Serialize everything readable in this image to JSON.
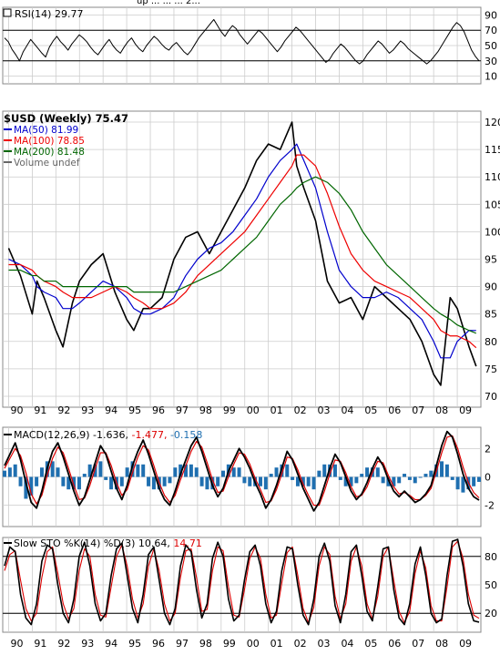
{
  "header": {
    "title_fragment": "up ...  ...  ... 2..."
  },
  "colors": {
    "price": "#000000",
    "price_down": "#cc0000",
    "ma50": "#0000cc",
    "ma100": "#ee0000",
    "ma200": "#006600",
    "macd": "#000000",
    "signal": "#dd0000",
    "histogram": "#1f6fb0",
    "slow_d": "#dd0000",
    "grid": "#cccccc",
    "reference_line": "#000000"
  },
  "years": [
    "90",
    "91",
    "92",
    "93",
    "94",
    "95",
    "96",
    "97",
    "98",
    "99",
    "00",
    "01",
    "02",
    "03",
    "04",
    "05",
    "06",
    "07",
    "08",
    "09"
  ],
  "chart_data": [
    {
      "type": "line",
      "panel": "rsi",
      "legend_label": "RSI(14)",
      "legend_value": "29.77",
      "yticks": [
        10,
        30,
        50,
        70,
        90
      ],
      "ylim": [
        0,
        100
      ],
      "reference_lines": [
        30,
        70
      ],
      "series": [
        {
          "name": "RSI(14)",
          "values": [
            60,
            55,
            45,
            38,
            30,
            42,
            50,
            58,
            52,
            46,
            40,
            35,
            48,
            56,
            62,
            55,
            50,
            44,
            52,
            58,
            64,
            60,
            55,
            48,
            42,
            38,
            45,
            52,
            58,
            50,
            44,
            40,
            48,
            55,
            60,
            52,
            46,
            42,
            50,
            56,
            62,
            58,
            52,
            47,
            44,
            50,
            54,
            48,
            42,
            38,
            44,
            52,
            60,
            66,
            72,
            78,
            84,
            76,
            68,
            62,
            70,
            76,
            72,
            64,
            58,
            52,
            58,
            64,
            70,
            66,
            60,
            54,
            48,
            42,
            48,
            56,
            62,
            68,
            74,
            70,
            64,
            58,
            52,
            46,
            40,
            34,
            28,
            32,
            40,
            46,
            52,
            48,
            42,
            36,
            30,
            26,
            30,
            38,
            44,
            50,
            56,
            52,
            46,
            40,
            44,
            50,
            56,
            52,
            46,
            42,
            38,
            34,
            30,
            26,
            30,
            36,
            42,
            50,
            58,
            66,
            74,
            80,
            76,
            68,
            56,
            44,
            36,
            30
          ]
        }
      ]
    },
    {
      "type": "line",
      "panel": "price",
      "title": "$USD (Weekly)",
      "title_value": "75.47",
      "legend": [
        {
          "name": "MA(50)",
          "value": "81.99"
        },
        {
          "name": "MA(100)",
          "value": "78.85"
        },
        {
          "name": "MA(200)",
          "value": "81.48"
        },
        {
          "name": "Volume undef",
          "value": ""
        }
      ],
      "yticks": [
        70,
        75,
        80,
        85,
        90,
        95,
        100,
        105,
        110,
        115,
        120
      ],
      "ytick_labels": [
        "70",
        "75",
        "80",
        "85",
        "90",
        "95",
        "100",
        "105",
        "110",
        "115",
        "120"
      ],
      "ylim": [
        68,
        122
      ],
      "x": [
        1990,
        1990.5,
        1991,
        1991.2,
        1991.5,
        1992,
        1992.3,
        1992.7,
        1993,
        1993.5,
        1994,
        1994.5,
        1995,
        1995.3,
        1995.7,
        1996,
        1996.5,
        1997,
        1997.5,
        1998,
        1998.5,
        1999,
        1999.5,
        2000,
        2000.5,
        2001,
        2001.5,
        2002,
        2002.2,
        2002.5,
        2003,
        2003.5,
        2004,
        2004.5,
        2005,
        2005.5,
        2006,
        2006.5,
        2007,
        2007.5,
        2008,
        2008.3,
        2008.7,
        2009,
        2009.5,
        2009.8
      ],
      "series": [
        {
          "name": "$USD",
          "values": [
            97,
            92,
            85,
            91,
            88,
            82,
            79,
            87,
            91,
            94,
            96,
            89,
            84,
            82,
            86,
            86,
            88,
            95,
            99,
            100,
            96,
            100,
            104,
            108,
            113,
            116,
            115,
            120,
            112,
            108,
            102,
            91,
            87,
            88,
            84,
            90,
            88,
            86,
            84,
            80,
            74,
            72,
            88,
            86,
            79,
            75.47
          ]
        },
        {
          "name": "MA(50)",
          "values": [
            95,
            94,
            92,
            90,
            89,
            88,
            86,
            86,
            87,
            89,
            91,
            90,
            88,
            86,
            85,
            85,
            86,
            88,
            92,
            95,
            97,
            98,
            100,
            103,
            106,
            110,
            113,
            115,
            116,
            113,
            108,
            100,
            93,
            90,
            88,
            88,
            89,
            88,
            86,
            84,
            80,
            77,
            77,
            80,
            82,
            81.99
          ]
        },
        {
          "name": "MA(100)",
          "values": [
            94,
            94,
            93,
            92,
            91,
            90,
            89,
            88,
            88,
            88,
            89,
            90,
            89,
            88,
            87,
            86,
            86,
            87,
            89,
            92,
            94,
            96,
            98,
            100,
            103,
            106,
            109,
            112,
            114,
            114,
            112,
            107,
            101,
            96,
            93,
            91,
            90,
            89,
            88,
            86,
            84,
            82,
            81,
            81,
            80,
            78.85
          ]
        },
        {
          "name": "MA(200)",
          "values": [
            93,
            93,
            92,
            92,
            91,
            91,
            90,
            90,
            90,
            90,
            90,
            90,
            90,
            89,
            89,
            89,
            89,
            89,
            90,
            91,
            92,
            93,
            95,
            97,
            99,
            102,
            105,
            107,
            108,
            109,
            110,
            109,
            107,
            104,
            100,
            97,
            94,
            92,
            90,
            88,
            86,
            85,
            84,
            83,
            82,
            81.48
          ]
        }
      ]
    },
    {
      "type": "line",
      "panel": "macd",
      "legend_label": "MACD(12,26,9)",
      "legend_values": [
        "-1.636",
        "-1.477",
        "-0.158"
      ],
      "yticks": [
        -2,
        0,
        2
      ],
      "ylim": [
        -3.5,
        3.5
      ],
      "series": [
        {
          "name": "MACD",
          "values": [
            0.8,
            1.6,
            2.4,
            1.2,
            -0.4,
            -1.8,
            -2.2,
            -1.0,
            0.6,
            1.8,
            2.4,
            1.4,
            0.2,
            -1.0,
            -2.0,
            -1.4,
            -0.2,
            1.0,
            2.2,
            1.6,
            0.4,
            -0.8,
            -1.6,
            -0.6,
            0.8,
            1.8,
            2.6,
            1.6,
            0.4,
            -0.8,
            -1.6,
            -2.0,
            -1.0,
            0.2,
            1.2,
            2.2,
            2.8,
            1.8,
            0.6,
            -0.6,
            -1.4,
            -0.8,
            0.4,
            1.2,
            2.0,
            1.4,
            0.6,
            -0.4,
            -1.2,
            -2.2,
            -1.6,
            -0.6,
            0.6,
            1.8,
            1.2,
            0.2,
            -0.8,
            -1.6,
            -2.4,
            -1.8,
            -0.6,
            0.6,
            1.6,
            1.0,
            0.0,
            -1.0,
            -1.6,
            -1.2,
            -0.4,
            0.6,
            1.4,
            0.8,
            -0.2,
            -1.0,
            -1.4,
            -1.0,
            -1.4,
            -1.8,
            -1.6,
            -1.2,
            -0.6,
            0.8,
            2.2,
            3.2,
            2.8,
            1.6,
            0.2,
            -0.8,
            -1.4,
            -1.636
          ]
        },
        {
          "name": "Signal",
          "values": [
            0.6,
            1.3,
            2.0,
            1.5,
            0.3,
            -1.2,
            -1.9,
            -1.3,
            0.1,
            1.3,
            2.1,
            1.7,
            0.6,
            -0.6,
            -1.6,
            -1.5,
            -0.6,
            0.6,
            1.7,
            1.7,
            0.8,
            -0.4,
            -1.3,
            -0.9,
            0.3,
            1.4,
            2.2,
            1.9,
            0.8,
            -0.4,
            -1.3,
            -1.8,
            -1.3,
            -0.2,
            0.8,
            1.8,
            2.5,
            2.1,
            1.0,
            -0.2,
            -1.1,
            -1.0,
            0.0,
            0.9,
            1.7,
            1.6,
            0.9,
            -0.1,
            -0.9,
            -1.8,
            -1.7,
            -0.9,
            0.2,
            1.4,
            1.3,
            0.5,
            -0.5,
            -1.3,
            -2.0,
            -2.0,
            -1.0,
            0.2,
            1.2,
            1.1,
            0.3,
            -0.7,
            -1.4,
            -1.3,
            -0.7,
            0.3,
            1.1,
            1.0,
            0.1,
            -0.7,
            -1.2,
            -1.1,
            -1.3,
            -1.6,
            -1.6,
            -1.3,
            -0.8,
            0.4,
            1.7,
            2.8,
            2.9,
            2.0,
            0.7,
            -0.4,
            -1.1,
            -1.477
          ]
        }
      ]
    },
    {
      "type": "line",
      "panel": "stochastic",
      "legend_label": "Slow STO %K(14) %D(3)",
      "legend_values": [
        "10.64",
        "14.71"
      ],
      "yticks": [
        20,
        50,
        80
      ],
      "ylim": [
        0,
        100
      ],
      "reference_lines": [
        20,
        80
      ],
      "series": [
        {
          "name": "%K",
          "values": [
            70,
            90,
            85,
            40,
            15,
            8,
            30,
            75,
            92,
            88,
            50,
            20,
            10,
            35,
            80,
            95,
            70,
            30,
            12,
            20,
            60,
            88,
            94,
            60,
            25,
            10,
            40,
            82,
            90,
            55,
            20,
            8,
            25,
            70,
            92,
            85,
            45,
            15,
            30,
            78,
            95,
            80,
            35,
            12,
            18,
            55,
            85,
            92,
            70,
            30,
            10,
            22,
            65,
            90,
            88,
            50,
            18,
            8,
            35,
            80,
            94,
            75,
            28,
            10,
            40,
            85,
            92,
            60,
            22,
            12,
            48,
            88,
            90,
            45,
            15,
            8,
            30,
            72,
            90,
            60,
            20,
            10,
            14,
            60,
            96,
            98,
            70,
            30,
            12,
            10.64
          ]
        },
        {
          "name": "%D",
          "values": [
            65,
            82,
            86,
            55,
            25,
            12,
            20,
            58,
            85,
            90,
            62,
            30,
            14,
            25,
            65,
            88,
            80,
            40,
            18,
            16,
            48,
            80,
            92,
            70,
            35,
            15,
            30,
            70,
            88,
            65,
            30,
            12,
            20,
            58,
            86,
            88,
            58,
            22,
            24,
            65,
            90,
            86,
            48,
            18,
            16,
            45,
            78,
            90,
            78,
            40,
            15,
            18,
            52,
            84,
            90,
            60,
            25,
            10,
            26,
            70,
            90,
            82,
            38,
            14,
            30,
            75,
            90,
            70,
            30,
            14,
            38,
            80,
            90,
            55,
            22,
            10,
            22,
            62,
            86,
            68,
            28,
            12,
            12,
            48,
            90,
            96,
            78,
            40,
            18,
            14.71
          ]
        }
      ]
    }
  ]
}
